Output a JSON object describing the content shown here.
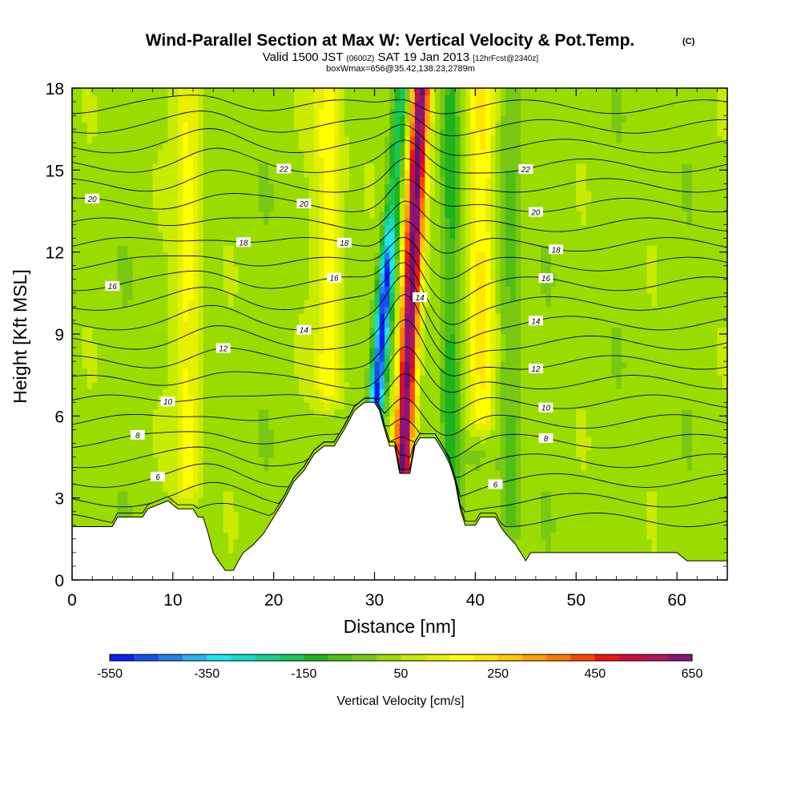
{
  "chart_data": {
    "type": "heatmap",
    "title": "Wind-Parallel Section at Max W: Vertical Velocity & Pot.Temp.",
    "title_mark": "(C)",
    "subtitle": {
      "valid_a": "Valid 1500 JST",
      "valid_zone": "(0600Z)",
      "valid_b": "SAT 19 Jan 2013",
      "forecast": "[12hrFcst@2340z]",
      "line2": "boxWmax=656@35.42,138.23,2789m"
    },
    "xlabel": "Distance [nm]",
    "ylabel": "Height [Kft MSL]",
    "xlim": [
      0,
      65
    ],
    "ylim": [
      0,
      18
    ],
    "x_ticks": [
      "0",
      "10",
      "20",
      "30",
      "40",
      "50",
      "60"
    ],
    "y_ticks": [
      "0",
      "3",
      "6",
      "9",
      "12",
      "15",
      "18"
    ],
    "colorbar": {
      "label": "Vertical Velocity [cm/s]",
      "ticks": [
        "-550",
        "-350",
        "-150",
        "50",
        "250",
        "450",
        "650"
      ],
      "levels": [
        -550,
        -500,
        -450,
        -400,
        -350,
        -300,
        -250,
        -200,
        -150,
        -100,
        -50,
        0,
        50,
        100,
        150,
        200,
        250,
        300,
        350,
        400,
        450,
        500,
        550,
        600,
        650
      ],
      "colors": [
        "#0a1ef5",
        "#1450f0",
        "#1e82f0",
        "#28b4f0",
        "#1ee6f0",
        "#14dcc8",
        "#14d28c",
        "#14c85a",
        "#1eb41e",
        "#50be14",
        "#78c814",
        "#9bdc00",
        "#c8eb00",
        "#e6f000",
        "#ffff00",
        "#ffe600",
        "#ffc800",
        "#ffa000",
        "#ff7800",
        "#ff4600",
        "#f01414",
        "#d20a3c",
        "#b4145a",
        "#8c1478",
        "#641478"
      ]
    },
    "terrain_kft": [
      [
        0,
        1.95
      ],
      [
        2,
        1.95
      ],
      [
        4,
        1.95
      ],
      [
        4.5,
        2.3
      ],
      [
        7,
        2.3
      ],
      [
        7.5,
        2.6
      ],
      [
        9.5,
        2.9
      ],
      [
        10.5,
        2.6
      ],
      [
        12,
        2.6
      ],
      [
        12.5,
        2.3
      ],
      [
        13,
        2.3
      ],
      [
        13.5,
        1.7
      ],
      [
        14,
        1.0
      ],
      [
        14.5,
        0.7
      ],
      [
        15.2,
        0.35
      ],
      [
        16,
        0.35
      ],
      [
        16.5,
        0.7
      ],
      [
        17,
        1.0
      ],
      [
        18,
        1.3
      ],
      [
        19,
        1.7
      ],
      [
        20,
        2.3
      ],
      [
        20.5,
        2.6
      ],
      [
        21,
        2.9
      ],
      [
        22,
        3.6
      ],
      [
        23,
        4.0
      ],
      [
        24,
        4.6
      ],
      [
        25,
        4.9
      ],
      [
        26,
        4.9
      ],
      [
        27,
        5.5
      ],
      [
        28,
        6.2
      ],
      [
        29,
        6.5
      ],
      [
        30,
        6.5
      ],
      [
        30.5,
        6.2
      ],
      [
        31,
        5.5
      ],
      [
        31.5,
        4.9
      ],
      [
        32,
        4.9
      ],
      [
        32.5,
        3.9
      ],
      [
        33.5,
        3.9
      ],
      [
        34,
        4.9
      ],
      [
        34.5,
        5.2
      ],
      [
        36,
        5.2
      ],
      [
        36.5,
        4.9
      ],
      [
        37,
        4.6
      ],
      [
        37.5,
        4.2
      ],
      [
        38,
        3.6
      ],
      [
        38.5,
        2.6
      ],
      [
        39,
        2.0
      ],
      [
        40,
        2.0
      ],
      [
        40.5,
        2.3
      ],
      [
        42,
        2.3
      ],
      [
        42.5,
        1.95
      ],
      [
        43,
        1.7
      ],
      [
        44,
        1.3
      ],
      [
        44.5,
        1.0
      ],
      [
        45,
        0.7
      ],
      [
        45.5,
        1.0
      ],
      [
        52,
        1.0
      ],
      [
        60,
        1.0
      ],
      [
        61,
        0.7
      ],
      [
        65,
        0.7
      ]
    ],
    "potential_temperature_isentropes": [
      {
        "level": 6,
        "label": "6"
      },
      {
        "level": 8,
        "label": "8"
      },
      {
        "level": 10,
        "label": "10"
      },
      {
        "level": 12,
        "label": "12"
      },
      {
        "level": 14,
        "label": "14"
      },
      {
        "level": 16,
        "label": "16"
      },
      {
        "level": 18,
        "label": "18"
      },
      {
        "level": 20,
        "label": "20"
      },
      {
        "level": 22,
        "label": "22"
      }
    ],
    "vertical_velocity_features": [
      {
        "kind": "downdraft",
        "center_x": 30.5,
        "bottom_kft": 4.9,
        "top_kft": 18,
        "min_cm_s": -550
      },
      {
        "kind": "updraft",
        "center_x": 33.5,
        "bottom_kft": 4.0,
        "top_kft": 18,
        "max_cm_s": 656
      },
      {
        "kind": "sink",
        "center_x": 37.5,
        "bottom_kft": 2.5,
        "top_kft": 18,
        "min_cm_s": -150
      },
      {
        "kind": "sink",
        "center_x": 43.5,
        "bottom_kft": 2.0,
        "top_kft": 18,
        "min_cm_s": -100
      },
      {
        "kind": "rise",
        "center_x": 11.5,
        "bottom_kft": 3.5,
        "top_kft": 18,
        "max_cm_s": 150
      },
      {
        "kind": "rise",
        "center_x": 25.5,
        "bottom_kft": 7.0,
        "top_kft": 18,
        "max_cm_s": 170
      },
      {
        "kind": "rise",
        "center_x": 40.5,
        "bottom_kft": 6.0,
        "top_kft": 18,
        "max_cm_s": 200
      }
    ],
    "grid": false,
    "legend": "bottom"
  }
}
